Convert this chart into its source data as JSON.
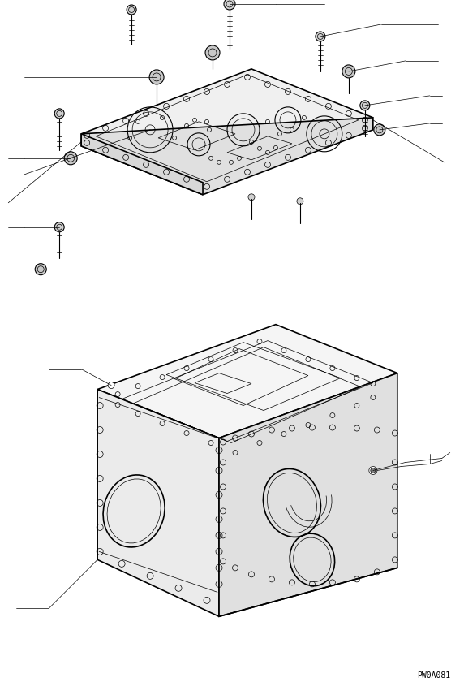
{
  "bg_color": "#ffffff",
  "line_color": "#000000",
  "line_width": 0.8,
  "thin_line": 0.5,
  "thick_line": 1.2,
  "figure_code": "PW0A081",
  "fig_width": 5.72,
  "fig_height": 8.4,
  "dpi": 100
}
